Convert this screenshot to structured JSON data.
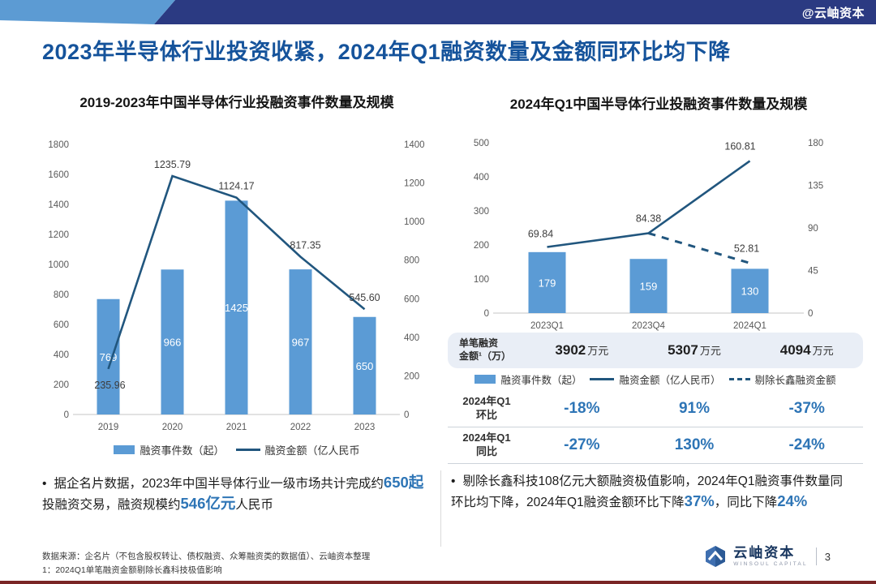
{
  "watermark": "@云岫资本",
  "page_title": "2023年半导体行业投资收紧，2024年Q1融资数量及金额同环比均下降",
  "colors": {
    "bar_blue": "#5B9BD5",
    "line_navy": "#21567E",
    "title_blue": "#15539B",
    "value_blue": "#2E75B6",
    "banner_navy": "#2B3A82",
    "banner_light_blue": "#5C9BD3"
  },
  "chart_data": [
    {
      "type": "combo bar+line",
      "title": "2019-2023年中国半导体行业投融资事件数量及规模",
      "categories": [
        "2019",
        "2020",
        "2021",
        "2022",
        "2023"
      ],
      "colors": {
        "bar": "#5b9bd5",
        "line": "#21567e"
      },
      "left_axis": {
        "min": 0,
        "max": 1800,
        "step": 200
      },
      "right_axis": {
        "min": 0,
        "max": 1400,
        "step": 200
      },
      "series": [
        {
          "name": "融资事件数（起）",
          "type": "bar",
          "axis": "left",
          "values": [
            769,
            966,
            1425,
            967,
            650
          ],
          "labels": [
            "769",
            "966",
            "1425",
            "967",
            "650"
          ]
        },
        {
          "name": "融资金额（亿人民币",
          "type": "line",
          "axis": "right",
          "values": [
            235.96,
            1235.79,
            1124.17,
            817.35,
            545.6
          ],
          "labels": [
            "235.96",
            "1235.79",
            "1124.17",
            "817.35",
            "545.60"
          ]
        }
      ],
      "legend": [
        {
          "swatch": "bar",
          "label": "融资事件数（起）"
        },
        {
          "swatch": "line",
          "label": "融资金额（亿人民币"
        }
      ]
    },
    {
      "type": "combo bar+line",
      "title": "2024年Q1中国半导体行业投融资事件数量及规模",
      "categories": [
        "2023Q1",
        "2023Q4",
        "2024Q1"
      ],
      "colors": {
        "bar": "#5b9bd5",
        "line": "#21567e"
      },
      "left_axis": {
        "min": 0,
        "max": 500,
        "step": 100
      },
      "right_axis": {
        "min": 0,
        "max": 180,
        "step": 45
      },
      "series": [
        {
          "name": "融资事件数（起）",
          "type": "bar",
          "axis": "left",
          "values": [
            179,
            159,
            130
          ],
          "labels": [
            "179",
            "159",
            "130"
          ]
        },
        {
          "name": "融资金额（亿人民币）",
          "type": "line",
          "axis": "right",
          "values": [
            69.84,
            84.38,
            160.81
          ],
          "labels": [
            "69.84",
            "84.38",
            "160.81"
          ]
        },
        {
          "name": "剔除长鑫融资金额",
          "type": "dashed",
          "axis": "right",
          "values": [
            null,
            84.38,
            52.81
          ],
          "labels": [
            null,
            null,
            "52.81"
          ]
        }
      ],
      "legend": [
        {
          "swatch": "bar",
          "label": "融资事件数（起）"
        },
        {
          "swatch": "line",
          "label": "融资金额（亿人民币）"
        },
        {
          "swatch": "dashed",
          "label": "剔除长鑫融资金额"
        }
      ]
    }
  ],
  "per_deal_row": {
    "label_line1": "单笔融资",
    "label_line2": "金额¹（万）",
    "values": [
      {
        "num": "3902",
        "unit": "万元"
      },
      {
        "num": "5307",
        "unit": "万元"
      },
      {
        "num": "4094",
        "unit": "万元"
      }
    ]
  },
  "comparison_table": {
    "rows": [
      {
        "label_line1": "2024年Q1",
        "label_line2": "环比",
        "values": [
          "-18%",
          "91%",
          "-37%"
        ]
      },
      {
        "label_line1": "2024年Q1",
        "label_line2": "同比",
        "values": [
          "-27%",
          "130%",
          "-24%"
        ]
      }
    ]
  },
  "left_bullet": {
    "marker": "•",
    "segments": [
      {
        "text": "据企名片数据，2023年中国半导体行业一级市场共计完成约",
        "hl": false
      },
      {
        "text": "650起",
        "hl": true
      },
      {
        "text": "投融资交易，融资规模约",
        "hl": false
      },
      {
        "text": "546亿元",
        "hl": true
      },
      {
        "text": "人民币",
        "hl": false
      }
    ]
  },
  "right_bullet": {
    "marker": "•",
    "segments": [
      {
        "text": "剔除长鑫科技108亿元大额融资极值影响，2024年Q1融资事件数量同环比均下降，2024年Q1融资金额环比下降",
        "hl": false
      },
      {
        "text": "37%",
        "hl": true
      },
      {
        "text": "，同比下降",
        "hl": false
      },
      {
        "text": "24%",
        "hl": true
      }
    ]
  },
  "footer": {
    "source_line": "数据来源：企名片（不包含股权转让、债权融资、众筹融资类的数据值）、云岫资本整理",
    "note_line": "1：2024Q1单笔融资金额剔除长鑫科技极值影响",
    "brand_cn": "云岫资本",
    "brand_en": "WINSOUL CAPITAL",
    "page_number": "3"
  }
}
